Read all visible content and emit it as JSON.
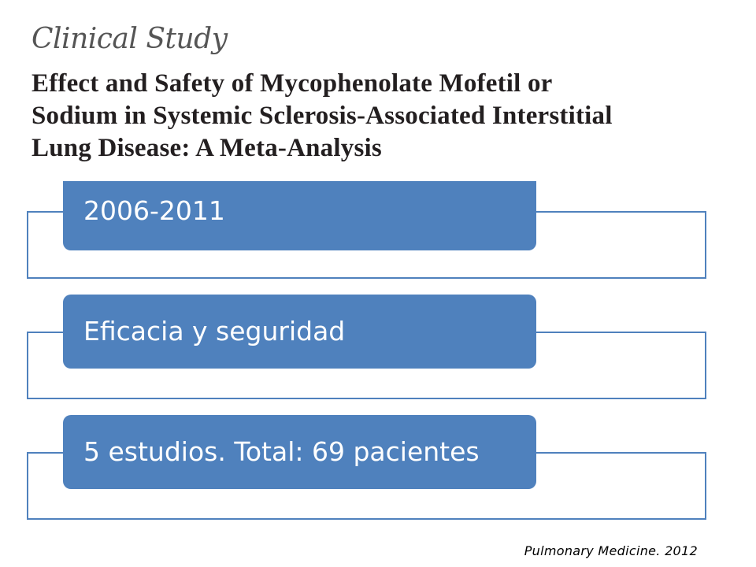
{
  "paper": {
    "type": "Clinical Study",
    "title": "Effect and Safety of Mycophenolate Mofetil or\nSodium in Systemic Sclerosis-Associated Interstitial\nLung Disease: A Meta-Analysis"
  },
  "list": {
    "items": [
      {
        "label": "2006-2011"
      },
      {
        "label": "Eficacia y seguridad"
      },
      {
        "label": "5 estudios. Total: 69 pacientes"
      }
    ]
  },
  "citation": "Pulmonary Medicine. 2012",
  "colors": {
    "accent": "#4f81bd",
    "title_text": "#231f20",
    "type_text": "#555555"
  }
}
